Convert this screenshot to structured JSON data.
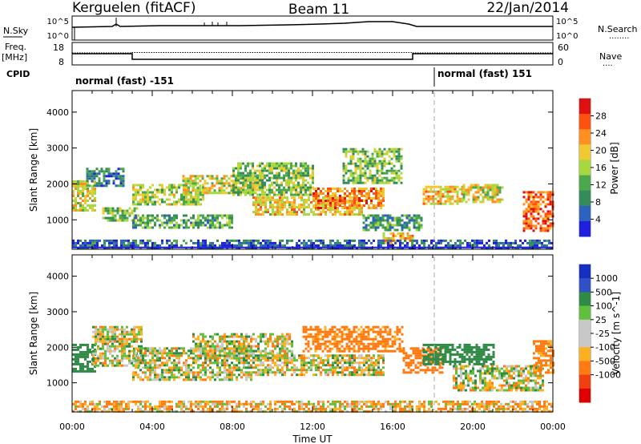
{
  "header": {
    "station": "Kerguelen (fitACF)",
    "beam": "Beam 11",
    "date": "22/Jan/2014"
  },
  "panels": {
    "nsky_label": "N.Sky",
    "nsearch_label": "N.Search",
    "nsearch_key": "........",
    "noise_ticks": [
      "10^5",
      "10^0"
    ],
    "freq_label_1": "Freq.",
    "freq_label_2": "[MHz]",
    "freq_ticks": [
      "18",
      "8"
    ],
    "nave_label": "Nave",
    "nave_key": "....",
    "nave_ticks": [
      "60",
      "0"
    ],
    "cpid_label": "CPID",
    "cpid_1": "normal (fast) -151",
    "cpid_2": "normal (fast) 151"
  },
  "colors": {
    "power": [
      "#1f1fe0",
      "#2e62c0",
      "#348c5a",
      "#4ca84c",
      "#a8d840",
      "#f0c830",
      "#ff9020",
      "#ff5010",
      "#e01010"
    ],
    "velocity": [
      "#1530c0",
      "#3050c8",
      "#2e8a45",
      "#60c03a",
      "#c8c8c8",
      "#c8c8c8",
      "#ffb020",
      "#ff7a10",
      "#f04010",
      "#e00000"
    ]
  },
  "chart_data": [
    {
      "type": "heatmap",
      "quantity": "power",
      "xlabel": "",
      "ylabel": "Slant Range [km]",
      "colorbar_label": "Power [dB]",
      "colorbar_ticks": [
        "28",
        "24",
        "20",
        "16",
        "12",
        "8",
        "4"
      ],
      "colorbar_range": [
        0,
        32
      ],
      "ylim": [
        180,
        4600
      ],
      "yticks": [
        "4000",
        "3000",
        "2000",
        "1000"
      ],
      "xlim_hours": [
        0,
        24
      ],
      "xticks": [
        "00:00",
        "04:00",
        "08:00",
        "12:00",
        "16:00",
        "20:00",
        "00:00"
      ],
      "echo_bands": [
        {
          "t0": 0.0,
          "t1": 1.2,
          "r0": 1250,
          "r1": 2100,
          "value": 18
        },
        {
          "t0": 0.7,
          "t1": 2.6,
          "r0": 1950,
          "r1": 2450,
          "value": 8
        },
        {
          "t0": 1.5,
          "t1": 3.2,
          "r0": 950,
          "r1": 1350,
          "value": 14
        },
        {
          "t0": 3.0,
          "t1": 6.5,
          "r0": 1450,
          "r1": 2000,
          "value": 16
        },
        {
          "t0": 3.0,
          "t1": 8.0,
          "r0": 750,
          "r1": 1150,
          "value": 12
        },
        {
          "t0": 5.5,
          "t1": 9.5,
          "r0": 1750,
          "r1": 2250,
          "value": 18
        },
        {
          "t0": 8.0,
          "t1": 12.0,
          "r0": 1700,
          "r1": 2600,
          "value": 14
        },
        {
          "t0": 9.0,
          "t1": 14.5,
          "r0": 1150,
          "r1": 1650,
          "value": 20
        },
        {
          "t0": 12.0,
          "t1": 15.5,
          "r0": 1300,
          "r1": 1900,
          "value": 24
        },
        {
          "t0": 13.5,
          "t1": 16.5,
          "r0": 2000,
          "r1": 3000,
          "value": 14
        },
        {
          "t0": 14.5,
          "t1": 17.5,
          "r0": 700,
          "r1": 1150,
          "value": 10
        },
        {
          "t0": 15.5,
          "t1": 17.0,
          "r0": 350,
          "r1": 650,
          "value": 22
        },
        {
          "t0": 17.5,
          "t1": 19.5,
          "r0": 1450,
          "r1": 1950,
          "value": 20
        },
        {
          "t0": 19.5,
          "t1": 21.5,
          "r0": 1500,
          "r1": 2000,
          "value": 18
        },
        {
          "t0": 22.5,
          "t1": 24.0,
          "r0": 700,
          "r1": 1800,
          "value": 26
        },
        {
          "t0": 0.0,
          "t1": 24.0,
          "r0": 200,
          "r1": 450,
          "value": 6
        }
      ]
    },
    {
      "type": "heatmap",
      "quantity": "velocity",
      "xlabel": "Time UT",
      "ylabel": "Slant Range [km]",
      "colorbar_label": "Velocity [m s^-1]",
      "colorbar_ticks": [
        "1000",
        "500",
        "100",
        "25",
        "-25",
        "-100",
        "-500",
        "-1000"
      ],
      "ylim": [
        180,
        4600
      ],
      "yticks": [
        "4000",
        "3000",
        "2000",
        "1000"
      ],
      "xlim_hours": [
        0,
        24
      ],
      "xticks": [
        "00:00",
        "04:00",
        "08:00",
        "12:00",
        "16:00",
        "20:00",
        "00:00"
      ],
      "echo_bands": [
        {
          "t0": 0.0,
          "t1": 1.2,
          "r0": 1300,
          "r1": 2100,
          "value": 300
        },
        {
          "t0": 1.0,
          "t1": 3.5,
          "r0": 1500,
          "r1": 2600,
          "value": 0
        },
        {
          "t0": 3.0,
          "t1": 9.0,
          "r0": 1100,
          "r1": 2000,
          "value": 0
        },
        {
          "t0": 6.0,
          "t1": 11.0,
          "r0": 1700,
          "r1": 2400,
          "value": 0
        },
        {
          "t0": 9.0,
          "t1": 15.5,
          "r0": 1200,
          "r1": 1800,
          "value": 0
        },
        {
          "t0": 11.5,
          "t1": 16.5,
          "r0": 1900,
          "r1": 2600,
          "value": -200
        },
        {
          "t0": 16.5,
          "t1": 18.5,
          "r0": 1300,
          "r1": 2000,
          "value": -300
        },
        {
          "t0": 17.5,
          "t1": 21.0,
          "r0": 1500,
          "r1": 2100,
          "value": 300
        },
        {
          "t0": 19.0,
          "t1": 23.5,
          "r0": 800,
          "r1": 1500,
          "value": 0
        },
        {
          "t0": 23.0,
          "t1": 24.0,
          "r0": 1300,
          "r1": 2200,
          "value": -200
        },
        {
          "t0": 0.0,
          "t1": 24.0,
          "r0": 200,
          "r1": 500,
          "value": -80
        }
      ]
    }
  ]
}
